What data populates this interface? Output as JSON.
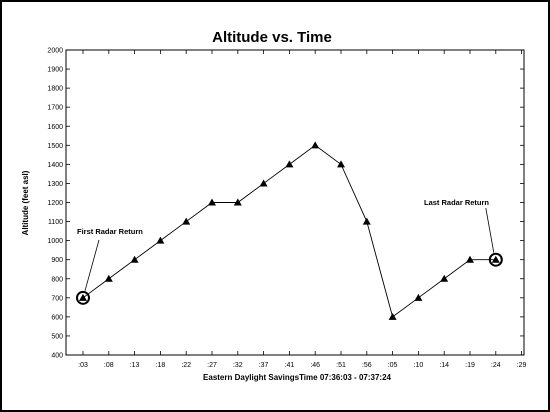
{
  "chart_data": {
    "type": "line",
    "title": "Altitude vs. Time",
    "xlabel": "Eastern Daylight SavingsTime  07:36:03 - 07:37:24",
    "ylabel": "Altitude (feet asl)",
    "ylim": [
      400,
      2000
    ],
    "yticks": [
      400,
      500,
      600,
      700,
      800,
      900,
      1000,
      1100,
      1200,
      1300,
      1400,
      1500,
      1600,
      1700,
      1800,
      1900,
      2000
    ],
    "xticks": [
      ":03",
      ":08",
      ":13",
      ":18",
      ":22",
      ":27",
      ":32",
      ":37",
      ":41",
      ":46",
      ":51",
      ":56",
      ":05",
      ":10",
      ":14",
      ":19",
      ":24",
      ":29"
    ],
    "series": [
      {
        "x_index": [
          0,
          1,
          2,
          3,
          4,
          5,
          6,
          7,
          8,
          9,
          10,
          11,
          12,
          13,
          14,
          15,
          16
        ],
        "values": [
          700,
          800,
          900,
          1000,
          1100,
          1200,
          1200,
          1300,
          1400,
          1500,
          1400,
          1100,
          600,
          700,
          800,
          900,
          900
        ]
      }
    ],
    "annotations": [
      {
        "text": "First Radar Return",
        "point_index": 0
      },
      {
        "text": "Last Radar Return",
        "point_index": 16
      }
    ],
    "grid": false
  }
}
